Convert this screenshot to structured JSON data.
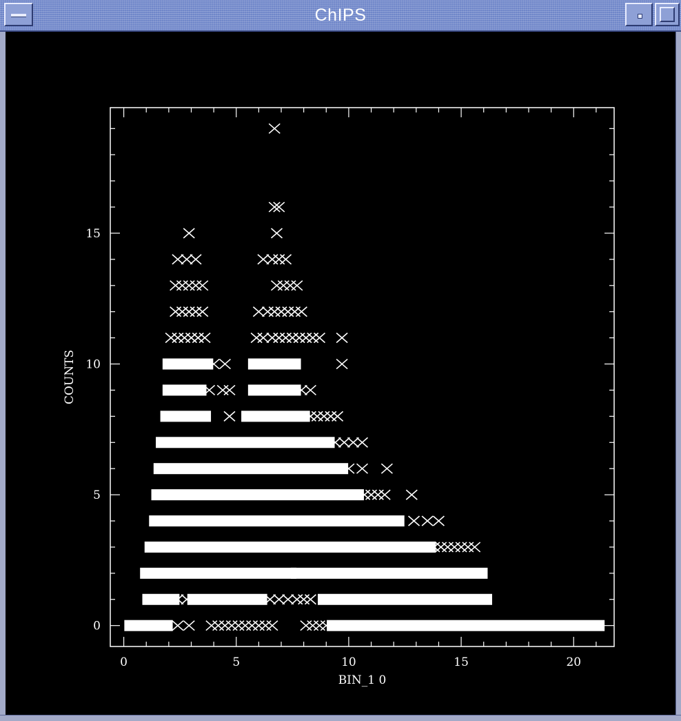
{
  "window": {
    "title": "ChIPS",
    "menu_button_icon": "window-menu-icon",
    "minimize_button_icon": "minimize-icon",
    "maximize_button_icon": "maximize-icon"
  },
  "chart_data": {
    "type": "scatter",
    "title": "",
    "xlabel": "BIN_1 0",
    "ylabel": "COUNTS",
    "xlim": [
      -0.6,
      21.8
    ],
    "ylim": [
      -0.8,
      19.8
    ],
    "xticks": [
      0,
      5,
      10,
      15,
      20
    ],
    "yticks": [
      0,
      5,
      10,
      15
    ],
    "grid": false,
    "marker": "x",
    "color": "#ffffff",
    "rows": [
      {
        "y": 0,
        "segments": [
          [
            0.3,
            1.9
          ],
          [
            9.3,
            21.1
          ]
        ],
        "points": [
          2.4,
          2.9,
          3.9,
          4.2,
          4.5,
          4.8,
          5.1,
          5.4,
          5.7,
          6.0,
          6.3,
          6.6,
          8.1,
          8.4,
          8.7,
          9.0
        ]
      },
      {
        "y": 1,
        "segments": [
          [
            1.1,
            2.2
          ],
          [
            3.1,
            6.1
          ],
          [
            8.9,
            16.1
          ]
        ],
        "points": [
          2.4,
          2.8,
          6.5,
          6.9,
          7.3,
          7.7,
          8.0,
          8.3
        ]
      },
      {
        "y": 2,
        "segments": [
          [
            1.0,
            7.4
          ],
          [
            7.7,
            15.9
          ]
        ],
        "points": []
      },
      {
        "y": 3,
        "segments": [
          [
            1.2,
            13.6
          ]
        ],
        "points": [
          13.8,
          14.1,
          14.4,
          14.7,
          15.0,
          15.3,
          15.6
        ]
      },
      {
        "y": 4,
        "segments": [
          [
            1.4,
            12.2
          ]
        ],
        "points": [
          12.9,
          13.5,
          14.0
        ]
      },
      {
        "y": 5,
        "segments": [
          [
            1.5,
            10.4
          ]
        ],
        "points": [
          10.7,
          11.0,
          11.3,
          11.6,
          12.8
        ]
      },
      {
        "y": 6,
        "segments": [
          [
            1.6,
            9.7
          ]
        ],
        "points": [
          10.0,
          10.6,
          11.7
        ]
      },
      {
        "y": 7,
        "segments": [
          [
            1.7,
            9.1
          ]
        ],
        "points": [
          9.4,
          9.8,
          10.2,
          10.6
        ]
      },
      {
        "y": 8,
        "segments": [
          [
            1.9,
            3.6
          ],
          [
            5.5,
            8.0
          ]
        ],
        "points": [
          4.7,
          8.3,
          8.6,
          8.9,
          9.2,
          9.5
        ]
      },
      {
        "y": 9,
        "segments": [
          [
            2.0,
            3.4
          ],
          [
            5.8,
            7.6
          ]
        ],
        "points": [
          3.8,
          4.4,
          4.7,
          7.9,
          8.3
        ]
      },
      {
        "y": 10,
        "segments": [
          [
            2.0,
            3.7
          ],
          [
            5.8,
            7.6
          ]
        ],
        "points": [
          4.0,
          4.5,
          9.7
        ]
      },
      {
        "y": 11,
        "segments": [],
        "points": [
          2.1,
          2.4,
          2.7,
          3.0,
          3.3,
          3.6,
          5.9,
          6.2,
          6.6,
          6.9,
          7.2,
          7.5,
          7.8,
          8.1,
          8.4,
          8.7,
          9.7
        ]
      },
      {
        "y": 12,
        "segments": [],
        "points": [
          2.3,
          2.6,
          2.9,
          3.2,
          3.5,
          6.0,
          6.4,
          6.7,
          7.0,
          7.3,
          7.6,
          7.9
        ]
      },
      {
        "y": 13,
        "segments": [],
        "points": [
          2.3,
          2.6,
          2.9,
          3.2,
          3.5,
          6.8,
          7.1,
          7.4,
          7.7
        ]
      },
      {
        "y": 14,
        "segments": [],
        "points": [
          2.4,
          2.8,
          3.2,
          6.2,
          6.6,
          6.9,
          7.2
        ]
      },
      {
        "y": 15,
        "segments": [],
        "points": [
          2.9,
          6.8
        ]
      },
      {
        "y": 16,
        "segments": [],
        "points": [
          6.7,
          6.9
        ]
      },
      {
        "y": 19,
        "segments": [],
        "points": [
          6.7
        ]
      }
    ]
  }
}
